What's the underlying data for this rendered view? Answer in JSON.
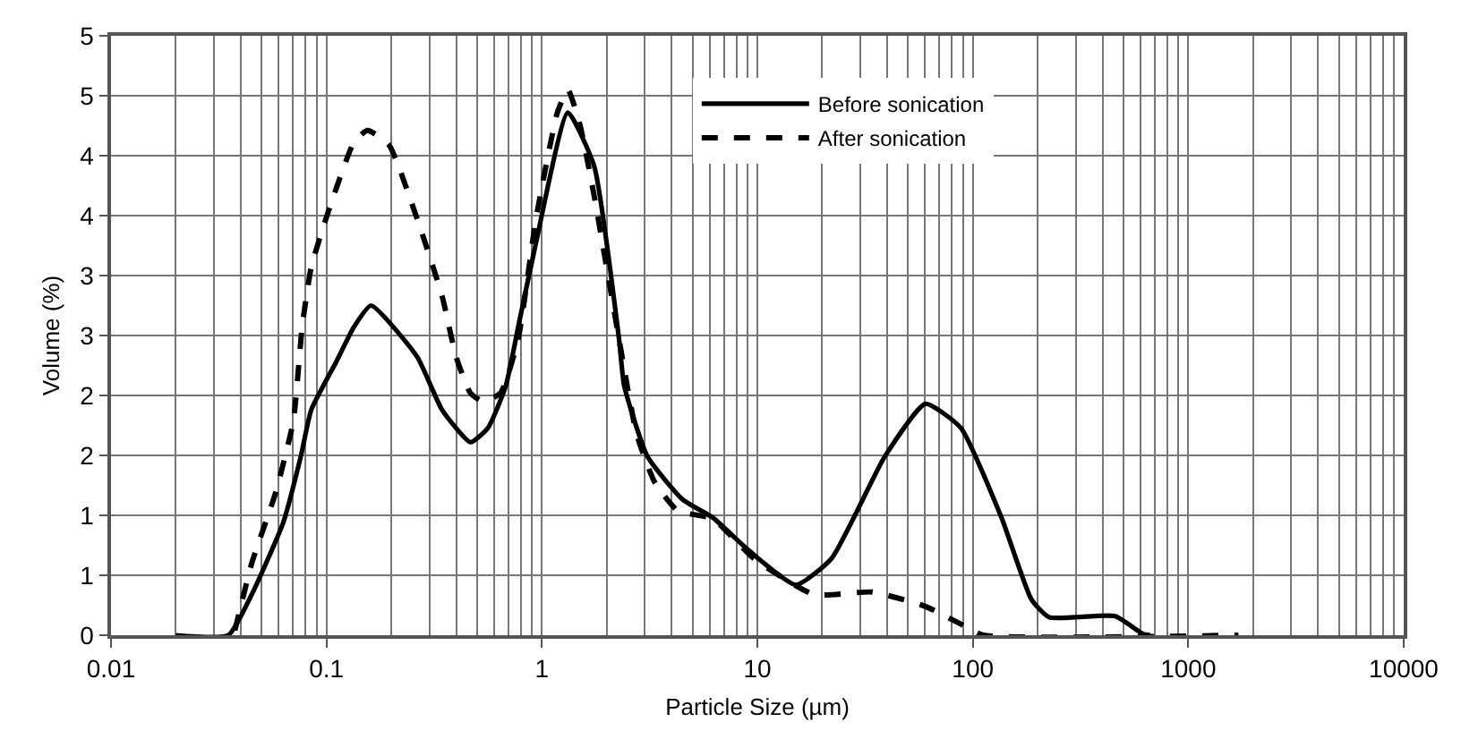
{
  "chart_data": {
    "type": "line",
    "xlabel": "Particle Size (µm)",
    "ylabel": "Volume (%)",
    "log": "x",
    "grid": true,
    "legend": "top right",
    "xlim": [
      0.01,
      10000
    ],
    "xticks": [
      0.01,
      0.1,
      1,
      10,
      100,
      1000,
      10000
    ],
    "ylim": [
      0,
      5
    ],
    "yticks": [
      0,
      {
        "value": 0.5,
        "label": "1"
      },
      1,
      {
        "value": 1.5,
        "label": "2"
      },
      2,
      {
        "value": 2.5,
        "label": "3"
      },
      3,
      {
        "value": 3.5,
        "label": "4"
      },
      4,
      {
        "value": 4.5,
        "label": "5"
      },
      5
    ],
    "series": [
      {
        "name": "Before sonication",
        "color": "#000000",
        "line_style": "solid",
        "x": [
          0.02,
          0.035,
          0.045,
          0.063,
          0.076,
          0.085,
          0.111,
          0.134,
          0.161,
          0.264,
          0.344,
          0.466,
          0.562,
          0.68,
          0.776,
          0.938,
          1.32,
          1.75,
          2.28,
          2.41,
          3.09,
          4.51,
          6.22,
          9.08,
          15.1,
          22.1,
          39.0,
          60.3,
          87.9,
          136,
          187,
          226,
          456,
          617,
          666
        ],
        "values": [
          0,
          0,
          0.34,
          0.94,
          1.49,
          1.88,
          2.28,
          2.57,
          2.75,
          2.32,
          1.88,
          1.61,
          1.73,
          2.08,
          2.57,
          3.27,
          4.36,
          3.91,
          2.47,
          2.08,
          1.49,
          1.13,
          0.98,
          0.71,
          0.42,
          0.64,
          1.49,
          1.93,
          1.73,
          0.98,
          0.3,
          0.15,
          0.16,
          0.01,
          0
        ]
      },
      {
        "name": "After sonication",
        "color": "#000000",
        "line_style": "dashed",
        "x": [
          0.0376,
          0.045,
          0.0581,
          0.0702,
          0.0771,
          0.085,
          0.101,
          0.134,
          0.155,
          0.195,
          0.264,
          0.344,
          0.4,
          0.466,
          0.532,
          0.643,
          0.776,
          0.938,
          1.18,
          1.32,
          1.5,
          1.75,
          2.28,
          2.75,
          3.33,
          4.26,
          6.22,
          9.62,
          18.3,
          34.1,
          60.3,
          93.1,
          112,
          1710
        ],
        "values": [
          0.04,
          0.6,
          1.19,
          1.79,
          2.57,
          3.07,
          3.51,
          4.11,
          4.21,
          4.09,
          3.47,
          2.83,
          2.32,
          2.02,
          1.95,
          2.02,
          2.47,
          3.47,
          4.36,
          4.55,
          4.26,
          3.66,
          2.47,
          1.68,
          1.28,
          1.04,
          0.97,
          0.64,
          0.34,
          0.36,
          0.24,
          0.07,
          0,
          0
        ]
      }
    ]
  }
}
